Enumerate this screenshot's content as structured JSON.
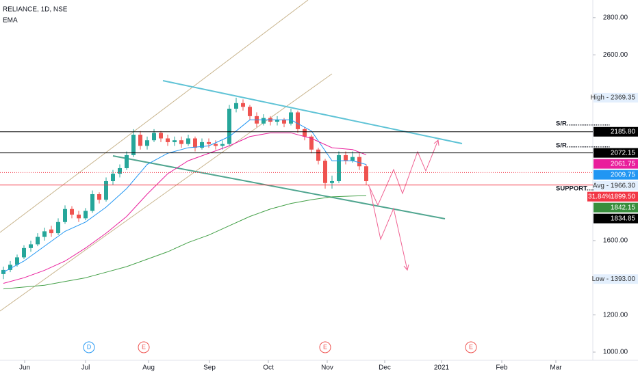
{
  "header": {
    "symbol": "RELIANCE, 1D, NSE",
    "indicator": "EMA"
  },
  "chart_data": {
    "type": "candlestick",
    "up_color": "#26a69a",
    "down_color": "#ef5350",
    "x": [
      0,
      1,
      2,
      3,
      4,
      5,
      6,
      7,
      8,
      9,
      10,
      11,
      12,
      13,
      14,
      15,
      16,
      17,
      18,
      19,
      20,
      21,
      22,
      23,
      24,
      25,
      26,
      27,
      28,
      29,
      30,
      31,
      32,
      33,
      34,
      35,
      36,
      37,
      38,
      39,
      40,
      41,
      42,
      43,
      44,
      45,
      46,
      47,
      48,
      49,
      50,
      51,
      52,
      53
    ],
    "open": [
      1420,
      1442,
      1470,
      1510,
      1560,
      1580,
      1620,
      1660,
      1640,
      1700,
      1770,
      1740,
      1720,
      1760,
      1850,
      1820,
      1920,
      1960,
      1990,
      2060,
      2170,
      2110,
      2140,
      2180,
      2150,
      2130,
      2140,
      2120,
      2150,
      2100,
      2130,
      2120,
      2110,
      2120,
      2310,
      2340,
      2320,
      2270,
      2230,
      2260,
      2240,
      2250,
      2230,
      2290,
      2200,
      2160,
      2090,
      2030,
      1910,
      1920,
      2060,
      2030,
      2050,
      2000
    ],
    "high": [
      1460,
      1490,
      1525,
      1575,
      1600,
      1640,
      1670,
      1680,
      1720,
      1790,
      1785,
      1760,
      1775,
      1870,
      1860,
      1940,
      1980,
      2010,
      2080,
      2200,
      2190,
      2160,
      2200,
      2190,
      2170,
      2160,
      2160,
      2170,
      2160,
      2150,
      2150,
      2140,
      2140,
      2330,
      2369.35,
      2360,
      2330,
      2290,
      2280,
      2270,
      2270,
      2260,
      2310,
      2300,
      2210,
      2170,
      2100,
      2040,
      1950,
      2080,
      2080,
      2080,
      2070,
      2010
    ],
    "low": [
      1393,
      1430,
      1460,
      1500,
      1540,
      1570,
      1600,
      1620,
      1630,
      1690,
      1720,
      1700,
      1710,
      1750,
      1800,
      1810,
      1900,
      1940,
      1980,
      2050,
      2090,
      2090,
      2130,
      2130,
      2110,
      2110,
      2100,
      2110,
      2080,
      2090,
      2100,
      2090,
      2090,
      2110,
      2290,
      2300,
      2250,
      2210,
      2220,
      2220,
      2220,
      2210,
      2220,
      2180,
      2140,
      2070,
      2010,
      1880,
      1880,
      1910,
      2010,
      2020,
      1980,
      1900
    ],
    "close": [
      1442,
      1470,
      1510,
      1560,
      1580,
      1620,
      1650,
      1640,
      1700,
      1770,
      1740,
      1720,
      1760,
      1850,
      1820,
      1920,
      1960,
      1990,
      2060,
      2170,
      2110,
      2140,
      2180,
      2150,
      2130,
      2140,
      2120,
      2150,
      2100,
      2130,
      2120,
      2110,
      2120,
      2310,
      2340,
      2320,
      2270,
      2230,
      2260,
      2240,
      2250,
      2230,
      2290,
      2200,
      2160,
      2090,
      2030,
      1910,
      1920,
      2060,
      2030,
      2050,
      2000,
      1920
    ],
    "lines": [
      {
        "color": "#2196f3",
        "x": [
          0,
          3,
          6,
          9,
          12,
          15,
          18,
          21,
          24,
          27,
          30,
          33,
          36,
          39,
          42,
          45,
          48,
          51,
          53
        ],
        "values": [
          1430,
          1490,
          1570,
          1650,
          1700,
          1780,
          1880,
          2010,
          2070,
          2100,
          2110,
          2160,
          2250,
          2250,
          2250,
          2190,
          2030,
          2030,
          2009.75
        ]
      },
      {
        "color": "#e91e9c",
        "x": [
          0,
          3,
          6,
          9,
          12,
          15,
          18,
          21,
          24,
          27,
          30,
          33,
          36,
          39,
          42,
          45,
          48,
          51,
          53
        ],
        "values": [
          1370,
          1400,
          1440,
          1490,
          1560,
          1640,
          1730,
          1850,
          1960,
          2030,
          2070,
          2110,
          2160,
          2180,
          2180,
          2150,
          2100,
          2090,
          2061.75
        ]
      },
      {
        "color": "#43a047",
        "x": [
          0,
          3,
          6,
          9,
          12,
          15,
          18,
          21,
          24,
          27,
          30,
          33,
          36,
          39,
          42,
          45,
          48,
          51,
          53
        ],
        "values": [
          1340,
          1350,
          1360,
          1380,
          1400,
          1430,
          1460,
          1500,
          1540,
          1590,
          1630,
          1680,
          1730,
          1770,
          1800,
          1820,
          1836,
          1840,
          1842.15
        ]
      }
    ],
    "xlim": [
      -0.5,
      86.1
    ],
    "xticks": [
      {
        "value": 3.1,
        "label": "Jun"
      },
      {
        "value": 12,
        "label": "Jul"
      },
      {
        "value": 21.2,
        "label": "Aug"
      },
      {
        "value": 30.1,
        "label": "Sep"
      },
      {
        "value": 38.7,
        "label": "Oct"
      },
      {
        "value": 47.3,
        "label": "Nov"
      },
      {
        "value": 55.7,
        "label": "Dec"
      },
      {
        "value": 64,
        "label": "2021"
      },
      {
        "value": 72.8,
        "label": "Feb"
      },
      {
        "value": 80.7,
        "label": "Mar"
      }
    ],
    "ylim": [
      956,
      2895
    ],
    "yticks": [
      {
        "value": 1000,
        "label": "1000.00"
      },
      {
        "value": 1200,
        "label": "1200.00"
      },
      {
        "value": 1400,
        "label": "1400.00"
      },
      {
        "value": 1600,
        "label": "1600.00"
      },
      {
        "value": 2600,
        "label": "2600.00"
      },
      {
        "value": 2800,
        "label": "2800.00"
      }
    ],
    "price_labels": [
      {
        "value": 2369.35,
        "label": "High - 2369.35",
        "color": "#e3effd",
        "text_color": "#333333"
      },
      {
        "value": 2185.8,
        "label": "2185.80",
        "color": "#000000",
        "text_color": "#ffffff",
        "line": "solid"
      },
      {
        "value": 2072.15,
        "label": "2072.15",
        "color": "#000000",
        "text_color": "#ffffff",
        "line": "solid"
      },
      {
        "value": 2061.75,
        "label": "2061.75",
        "color": "#e91e9c",
        "text_color": "#ffffff"
      },
      {
        "value": 2009.75,
        "label": "2009.75",
        "color": "#2196f3",
        "text_color": "#ffffff"
      },
      {
        "value": 1966.3,
        "label": "Avg - 1966.30",
        "color": "#e3effd",
        "text_color": "#333333",
        "line": "dotted"
      },
      {
        "value": 1899.5,
        "label": "1899.50",
        "tag": "31.84%",
        "color": "#f23645",
        "text_color": "#ffffff",
        "line": "solid"
      },
      {
        "value": 1842.15,
        "label": "1842.15",
        "color": "#388e3c",
        "text_color": "#ffffff"
      },
      {
        "value": 1834.85,
        "label": "1834.85",
        "color": "#000000",
        "text_color": "#ffffff"
      },
      {
        "value": 1393,
        "label": "Low - 1393.00",
        "color": "#e3effd",
        "text_color": "#333333"
      }
    ],
    "annotations": [
      "S/R........................",
      "S/R........................",
      "SUPPORT........"
    ],
    "events": [
      {
        "label": "D",
        "x": 12.5,
        "color": "#2196f3"
      },
      {
        "label": "E",
        "x": 20.5,
        "color": "#ef5350"
      },
      {
        "label": "E",
        "x": 47,
        "color": "#ef5350"
      },
      {
        "label": "E",
        "x": 68.3,
        "color": "#ef5350"
      }
    ]
  }
}
